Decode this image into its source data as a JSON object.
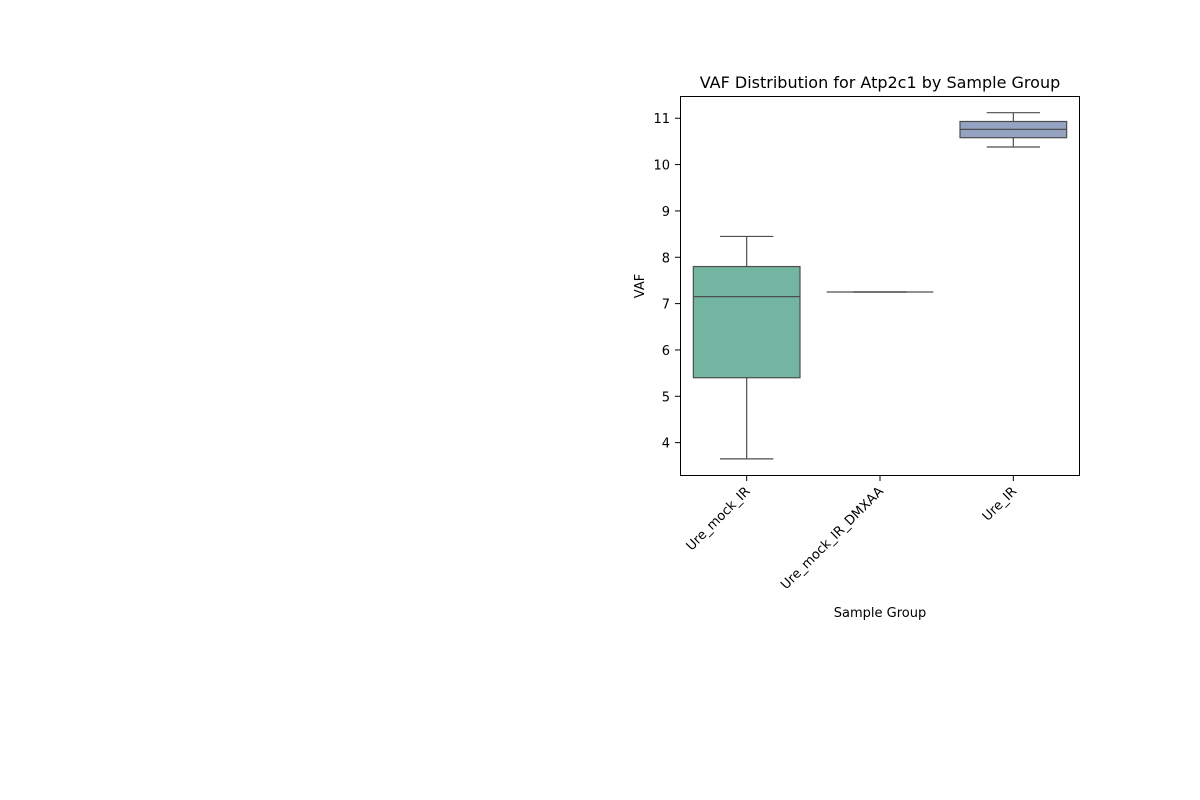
{
  "chart_data": {
    "type": "box",
    "title": "VAF Distribution for Atp2c1 by Sample Group",
    "xlabel": "Sample Group",
    "ylabel": "VAF",
    "ylim": [
      3.28,
      11.48
    ],
    "yticks": [
      4,
      5,
      6,
      7,
      8,
      9,
      10,
      11
    ],
    "grid": false,
    "legend": "none",
    "categories": [
      "Ure_mock_IR",
      "Ure_mock_IR_DMXAA",
      "Ure_IR"
    ],
    "series": [
      {
        "category": "Ure_mock_IR",
        "color": "#72b6a1",
        "whisker_low": 3.65,
        "q1": 5.4,
        "median": 7.15,
        "q3": 7.8,
        "whisker_high": 8.45
      },
      {
        "category": "Ure_mock_IR_DMXAA",
        "color": "#e99675",
        "whisker_low": 7.25,
        "q1": 7.25,
        "median": 7.25,
        "q3": 7.25,
        "whisker_high": 7.25
      },
      {
        "category": "Ure_IR",
        "color": "#95a3c3",
        "whisker_low": 10.38,
        "q1": 10.58,
        "median": 10.76,
        "q3": 10.93,
        "whisker_high": 11.12
      }
    ]
  }
}
